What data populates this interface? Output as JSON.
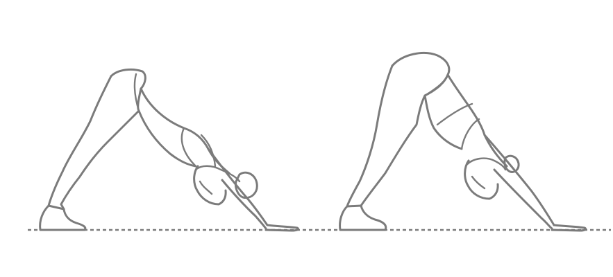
{
  "illustration": {
    "subject": "two-figures-downward-dog-pose",
    "line_color": "#7b7b7b",
    "background": "#ffffff",
    "figures": [
      {
        "id": "left-figure"
      },
      {
        "id": "right-figure"
      }
    ]
  }
}
